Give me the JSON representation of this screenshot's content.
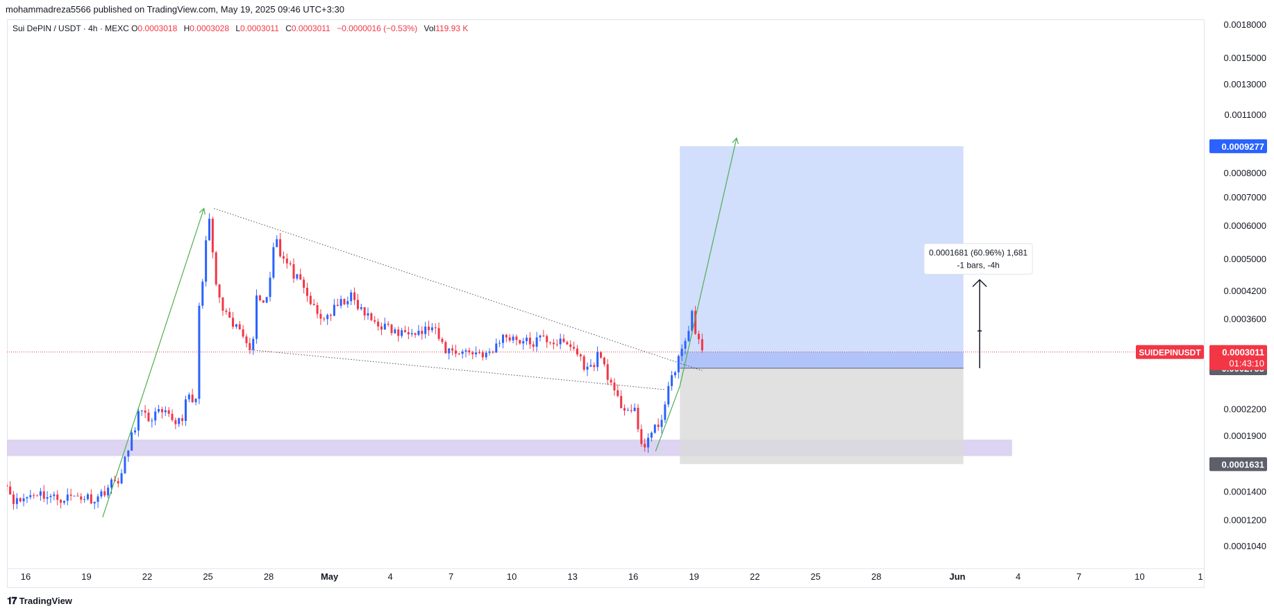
{
  "publisher": "mohammadreza5566 published on TradingView.com, May 19, 2025 09:46 UTC+3:30",
  "legend": {
    "symbol": "Sui DePIN / USDT · 4h · MEXC",
    "o_label": "O",
    "o": "0.0003018",
    "h_label": "H",
    "h": "0.0003028",
    "l_label": "L",
    "l": "0.0003011",
    "c_label": "C",
    "c": "0.0003011",
    "change": "−0.0000016 (−0.53%)",
    "vol_label": "Vol",
    "vol": "119.93 K"
  },
  "footer": {
    "brand": "TradingView",
    "logo_icon": "tradingview-logo-icon"
  },
  "colors": {
    "up": "#2962ff",
    "down": "#f23645",
    "target_zone": "#c5d6fb",
    "stop_zone": "#d9d9db",
    "support_zone": "#d6ccef",
    "trend_arrow": "#4caf50",
    "badge_blue": "#2962ff",
    "badge_red": "#f23645",
    "badge_gray": "#5d606b"
  },
  "chart_data": {
    "type": "candlestick",
    "symbol": "SUIDEPINUSDT",
    "interval": "4h",
    "y_scale": "log",
    "ylim": [
      9.3e-05,
      0.0019
    ],
    "y_ticks": [
      "0.0018000",
      "0.0015000",
      "0.0013000",
      "0.0011000",
      "0.0008000",
      "0.0007000",
      "0.0006000",
      "0.0005000",
      "0.0004200",
      "0.0003600",
      "0.0002200",
      "0.0001900",
      "0.0001400",
      "0.0001200",
      "0.0001040"
    ],
    "x_ticks": [
      {
        "label": "16",
        "day": -14
      },
      {
        "label": "19",
        "day": -11
      },
      {
        "label": "22",
        "day": -8
      },
      {
        "label": "25",
        "day": -5
      },
      {
        "label": "28",
        "day": -2
      },
      {
        "label": "May",
        "day": 1
      },
      {
        "label": "4",
        "day": 4
      },
      {
        "label": "7",
        "day": 7
      },
      {
        "label": "10",
        "day": 10
      },
      {
        "label": "13",
        "day": 13
      },
      {
        "label": "16",
        "day": 16
      },
      {
        "label": "19",
        "day": 19
      },
      {
        "label": "22",
        "day": 22
      },
      {
        "label": "25",
        "day": 25
      },
      {
        "label": "28",
        "day": 28
      },
      {
        "label": "Jun",
        "day": 32
      },
      {
        "label": "4",
        "day": 35
      },
      {
        "label": "7",
        "day": 38
      },
      {
        "label": "10",
        "day": 41
      },
      {
        "label": "1",
        "day": 44
      }
    ],
    "x_start_day": -15.1,
    "x_end_day": 44,
    "last_price": "0.0003011",
    "countdown": "01:43:10",
    "price_badges": [
      {
        "value": "0.0009277",
        "price": 0.0009277,
        "style": "blue"
      },
      {
        "value": "0.0002755",
        "price": 0.0002755,
        "style": "gray"
      },
      {
        "value": "0.0001631",
        "price": 0.0001631,
        "style": "gray"
      }
    ],
    "symbol_badge": "SUIDEPINUSDT",
    "anchors": [
      [
        -15.1,
        0.00015
      ],
      [
        -14.5,
        0.000132
      ],
      [
        -13.5,
        0.00014
      ],
      [
        -12.5,
        0.000135
      ],
      [
        -11.5,
        0.000137
      ],
      [
        -10.5,
        0.000135
      ],
      [
        -9.9,
        0.000145
      ],
      [
        -9.3,
        0.000152
      ],
      [
        -8.9,
        0.00018
      ],
      [
        -8.4,
        0.000218
      ],
      [
        -8.0,
        0.000208
      ],
      [
        -7.5,
        0.000215
      ],
      [
        -7.0,
        0.000212
      ],
      [
        -6.6,
        0.000206
      ],
      [
        -6.3,
        0.00021
      ],
      [
        -6.0,
        0.000235
      ],
      [
        -5.6,
        0.000228
      ],
      [
        -5.5,
        0.00039
      ],
      [
        -5.3,
        0.00042
      ],
      [
        -5.1,
        0.00054
      ],
      [
        -4.9,
        0.00064
      ],
      [
        -4.7,
        0.00046
      ],
      [
        -4.4,
        0.00039
      ],
      [
        -3.9,
        0.00035
      ],
      [
        -3.4,
        0.00034
      ],
      [
        -3.0,
        0.00032
      ],
      [
        -2.8,
        0.0003
      ],
      [
        -2.6,
        0.00042
      ],
      [
        -2.3,
        0.00039
      ],
      [
        -2.0,
        0.00042
      ],
      [
        -1.7,
        0.00059
      ],
      [
        -1.4,
        0.00051
      ],
      [
        -1.0,
        0.00048
      ],
      [
        -0.5,
        0.00044
      ],
      [
        0.0,
        0.0004
      ],
      [
        0.5,
        0.00036
      ],
      [
        1.0,
        0.00037
      ],
      [
        1.5,
        0.00039
      ],
      [
        2.0,
        0.00041
      ],
      [
        2.5,
        0.00038
      ],
      [
        3.0,
        0.00036
      ],
      [
        3.5,
        0.00035
      ],
      [
        4.0,
        0.00034
      ],
      [
        4.5,
        0.00033
      ],
      [
        5.0,
        0.000345
      ],
      [
        5.5,
        0.000335
      ],
      [
        6.0,
        0.000345
      ],
      [
        6.3,
        0.00033
      ],
      [
        6.7,
        0.000305
      ],
      [
        7.5,
        0.000302
      ],
      [
        8.5,
        0.0003
      ],
      [
        9.0,
        0.000295
      ],
      [
        9.3,
        0.00032
      ],
      [
        9.8,
        0.00033
      ],
      [
        10.5,
        0.00032
      ],
      [
        11.0,
        0.000315
      ],
      [
        11.5,
        0.000325
      ],
      [
        12.0,
        0.00032
      ],
      [
        12.5,
        0.000315
      ],
      [
        13.0,
        0.00031
      ],
      [
        13.5,
        0.000285
      ],
      [
        13.8,
        0.00027
      ],
      [
        14.3,
        0.0003
      ],
      [
        14.7,
        0.00027
      ],
      [
        15.0,
        0.00024
      ],
      [
        15.4,
        0.000225
      ],
      [
        15.8,
        0.00022
      ],
      [
        16.1,
        0.000215
      ],
      [
        16.3,
        0.000185
      ],
      [
        16.5,
        0.00018
      ],
      [
        16.8,
        0.00019
      ],
      [
        17.2,
        0.0002
      ],
      [
        17.5,
        0.00022
      ],
      [
        17.7,
        0.00024
      ],
      [
        17.9,
        0.00026
      ],
      [
        18.1,
        0.00028
      ],
      [
        18.3,
        0.0003
      ],
      [
        18.5,
        0.000305
      ],
      [
        18.7,
        0.00033
      ],
      [
        18.9,
        0.00038
      ],
      [
        19.0,
        0.00035
      ],
      [
        19.2,
        0.000318
      ],
      [
        19.4,
        0.000301
      ]
    ],
    "annotations": {
      "measure_label_1": "0.0001681 (60.96%) 1,681",
      "measure_label_2": "-1 bars, -4h",
      "position": {
        "start_day": 18.3,
        "end_day": 32.3,
        "entry": 0.0002755,
        "target": 0.0009277,
        "stop": 0.0001631
      },
      "support_zone": {
        "start_day": -15.1,
        "end_day": 34.7,
        "low": 0.0001705,
        "high": 0.0001865
      },
      "wedge_upper": [
        [
          -4.7,
          0.00066
        ],
        [
          19.4,
          0.000272
        ]
      ],
      "wedge_lower": [
        [
          -3.0,
          0.000305
        ],
        [
          17.6,
          0.000245
        ]
      ],
      "arrow_1": [
        [
          -10.2,
          0.000122
        ],
        [
          -5.2,
          0.00066
        ]
      ],
      "arrow_2": [
        [
          17.1,
          0.000175
        ],
        [
          18.3,
          0.00025
        ],
        [
          21.1,
          0.00097
        ]
      ],
      "measure_arrow": {
        "day": 33.1,
        "from": 0.0002755,
        "to": 0.000447
      }
    }
  }
}
